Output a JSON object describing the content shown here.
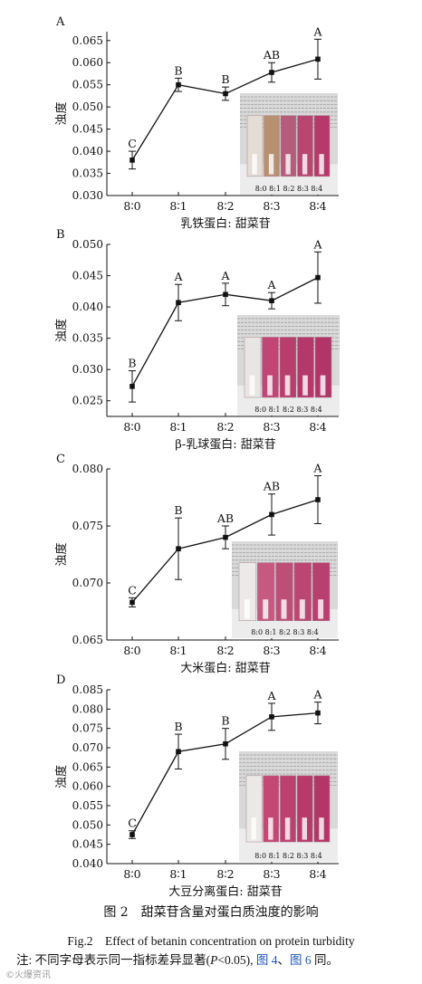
{
  "chart_data": [
    {
      "type": "line",
      "panel": "A",
      "categories": [
        "8∶0",
        "8∶1",
        "8∶2",
        "8∶3",
        "8∶4"
      ],
      "values": [
        0.038,
        0.055,
        0.053,
        0.0578,
        0.0608
      ],
      "errors": [
        0.002,
        0.0015,
        0.0015,
        0.0022,
        0.0045
      ],
      "letters": [
        "C",
        "B",
        "B",
        "AB",
        "A"
      ],
      "yticks": [
        "0.030",
        "0.035",
        "0.040",
        "0.045",
        "0.050",
        "0.055",
        "0.060",
        "0.065"
      ],
      "ylim": [
        0.03,
        0.067
      ],
      "xlabel": "乳铁蛋白: 甜菜苷",
      "ylabel": "浊度",
      "photo_labels": "8:0 8:1 8:2 8:3 8:4",
      "tube_colors": [
        "#e3ddd5",
        "#b7906f",
        "#b55c7a",
        "#b8466f",
        "#b63a69"
      ]
    },
    {
      "type": "line",
      "panel": "B",
      "categories": [
        "8∶0",
        "8∶1",
        "8∶2",
        "8∶3",
        "8∶4"
      ],
      "values": [
        0.0273,
        0.0407,
        0.042,
        0.041,
        0.0447
      ],
      "errors": [
        0.0025,
        0.0029,
        0.0018,
        0.0013,
        0.0041
      ],
      "letters": [
        "B",
        "A",
        "A",
        "A",
        "A"
      ],
      "yticks": [
        "0.025",
        "0.030",
        "0.035",
        "0.040",
        "0.045",
        "0.050"
      ],
      "ylim": [
        0.0225,
        0.05
      ],
      "xlabel": "β-乳球蛋白: 甜菜苷",
      "ylabel": "浊度",
      "photo_labels": "8:0 8:1 8:2 8:3 8:4",
      "tube_colors": [
        "#e8e6e4",
        "#c04675",
        "#b83e6c",
        "#b4386a",
        "#b23568"
      ]
    },
    {
      "type": "line",
      "panel": "C",
      "categories": [
        "8∶0",
        "8∶1",
        "8∶2",
        "8∶3",
        "8∶4"
      ],
      "values": [
        0.0683,
        0.073,
        0.074,
        0.076,
        0.0773
      ],
      "errors": [
        0.0004,
        0.0027,
        0.001,
        0.0018,
        0.0021
      ],
      "letters": [
        "C",
        "B",
        "AB",
        "AB",
        "A"
      ],
      "yticks": [
        "0.065",
        "0.070",
        "0.075",
        "0.080"
      ],
      "ylim": [
        0.065,
        0.08
      ],
      "xlabel": "大米蛋白: 甜菜苷",
      "ylabel": "浊度",
      "photo_labels": "8:0 8:1 8:2 8:3 8:4",
      "tube_colors": [
        "#eceae8",
        "#c5597f",
        "#bf4e77",
        "#bb4671",
        "#b8406e"
      ]
    },
    {
      "type": "line",
      "panel": "D",
      "categories": [
        "8∶0",
        "8∶1",
        "8∶2",
        "8∶3",
        "8∶4"
      ],
      "values": [
        0.0475,
        0.069,
        0.071,
        0.078,
        0.079
      ],
      "errors": [
        0.001,
        0.0045,
        0.004,
        0.0035,
        0.0028
      ],
      "letters": [
        "C",
        "B",
        "B",
        "A",
        "A"
      ],
      "yticks": [
        "0.040",
        "0.045",
        "0.050",
        "0.055",
        "0.060",
        "0.065",
        "0.070",
        "0.075",
        "0.080",
        "0.085"
      ],
      "ylim": [
        0.04,
        0.085
      ],
      "xlabel": "大豆分离蛋白: 甜菜苷",
      "ylabel": "浊度",
      "photo_labels": "8:0 8:1 8:2 8:3 8:4",
      "tube_colors": [
        "#ebe9e7",
        "#c34873",
        "#bd416f",
        "#b83a6b",
        "#b43668"
      ]
    }
  ],
  "caption": {
    "cn": "图 2　甜菜苷含量对蛋白质浊度的影响",
    "en": "Fig.2　Effect of betanin concentration on protein turbidity",
    "note_prefix": "注: 不同字母表示同一指标差异显著(",
    "note_p": "P",
    "note_mid": "<0.05), ",
    "note_ref1": "图 4",
    "note_sep": "、",
    "note_ref2": "图 6",
    "note_end": " 同。"
  },
  "watermark": "©火爆资讯"
}
